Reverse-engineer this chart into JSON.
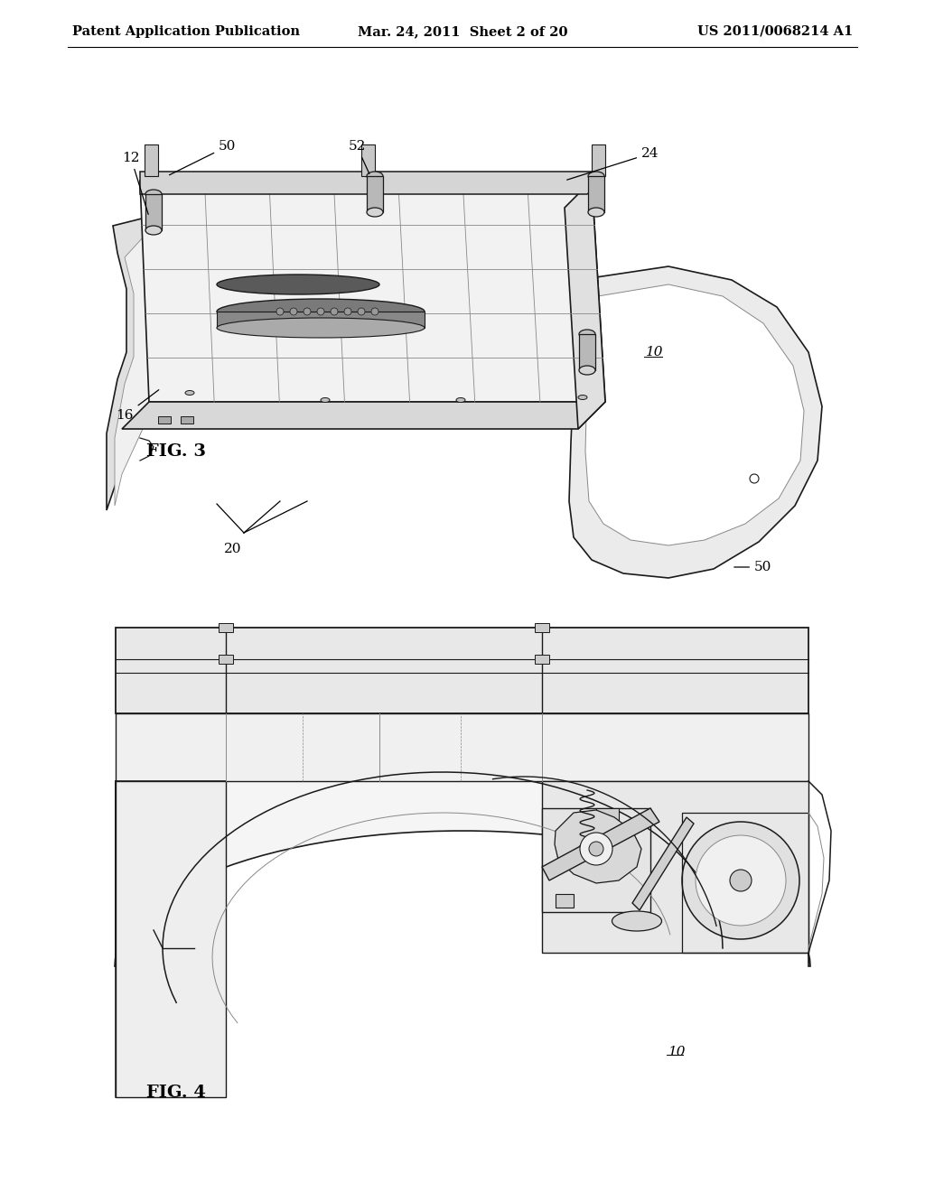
{
  "background_color": "#ffffff",
  "header_left": "Patent Application Publication",
  "header_center": "Mar. 24, 2011  Sheet 2 of 20",
  "header_right": "US 2011/0068214 A1",
  "black": "#000000",
  "dark": "#1a1a1a",
  "gray1": "#555555",
  "gray2": "#888888",
  "gray3": "#bbbbbb",
  "white": "#ffffff",
  "fig3_label": "FIG. 3",
  "fig4_label": "FIG. 4",
  "label_12": "12",
  "label_16": "16",
  "label_20": "20",
  "label_24": "24",
  "label_50a": "50",
  "label_50b": "50",
  "label_52": "52",
  "label_10a": "10",
  "label_10b": "10"
}
